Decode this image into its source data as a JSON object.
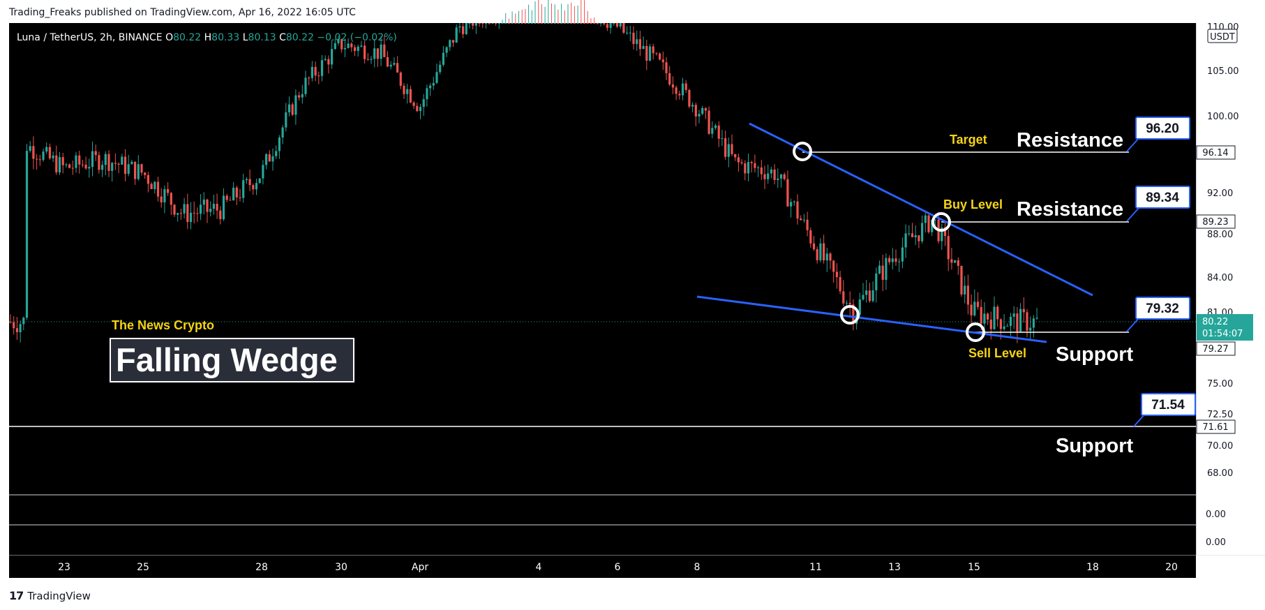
{
  "header": {
    "published": "Trading_Freaks published on TradingView.com, Apr 16, 2022 16:05 UTC"
  },
  "footer": {
    "brand_logo": "17",
    "brand_name": "TradingView"
  },
  "legend": {
    "symbol": "Luna / TetherUS, 2h, BINANCE",
    "o_label": "O",
    "o_value": "80.22",
    "h_label": "H",
    "h_value": "80.33",
    "l_label": "L",
    "l_value": "80.13",
    "c_label": "C",
    "c_value": "80.22",
    "change": "−0.02 (−0.02%)"
  },
  "annotations": {
    "watermark": "The News Crypto",
    "pattern_title": "Falling Wedge",
    "target": "Target",
    "buy_level": "Buy Level",
    "sell_level": "Sell Level",
    "resistance": "Resistance",
    "support": "Support"
  },
  "colors": {
    "up": "#26a69a",
    "down": "#ef5350",
    "trendline": "#2962ff",
    "label_gold": "#f5d415",
    "last_price_bg": "#26a69a"
  },
  "chart_data": {
    "type": "candlestick",
    "title": "Luna / TetherUS, 2h, BINANCE",
    "ylabel": "USDT",
    "y_ticks": [
      "110.00",
      "105.00",
      "100.00",
      "92.00",
      "88.00",
      "84.00",
      "81.00",
      "75.00",
      "72.50",
      "70.00",
      "68.00"
    ],
    "x_ticks": [
      "23",
      "25",
      "28",
      "30",
      "Apr",
      "4",
      "6",
      "8",
      "11",
      "13",
      "15",
      "18",
      "20"
    ],
    "price_lines": [
      {
        "name": "Resistance",
        "callout": "96.20",
        "axis_label": "96.14",
        "note": "Target"
      },
      {
        "name": "Resistance",
        "callout": "89.34",
        "axis_label": "89.23",
        "note": "Buy Level"
      },
      {
        "name": "Support",
        "callout": "79.32",
        "axis_label": "79.27",
        "note": "Sell Level"
      },
      {
        "name": "Support",
        "callout": "71.54",
        "axis_label": "71.61",
        "note": ""
      }
    ],
    "last_price": {
      "value": "80.22",
      "countdown": "01:54:07"
    },
    "indicator_panes": [
      {
        "value": "0.00"
      },
      {
        "value": "0.00"
      }
    ],
    "price_path": [
      [
        "2022-03-22",
        97
      ],
      [
        "2022-03-23",
        94.5
      ],
      [
        "2022-03-24",
        95.5
      ],
      [
        "2022-03-25",
        94
      ],
      [
        "2022-03-26",
        90
      ],
      [
        "2022-03-27",
        90.5
      ],
      [
        "2022-03-28",
        94
      ],
      [
        "2022-03-29",
        103
      ],
      [
        "2022-03-30",
        108
      ],
      [
        "2022-03-31",
        107
      ],
      [
        "2022-04-01",
        101
      ],
      [
        "2022-04-02",
        110
      ],
      [
        "2022-04-03",
        112
      ],
      [
        "2022-04-04",
        114
      ],
      [
        "2022-04-05",
        113
      ],
      [
        "2022-04-06",
        110
      ],
      [
        "2022-04-07",
        106
      ],
      [
        "2022-04-08",
        101
      ],
      [
        "2022-04-09",
        95
      ],
      [
        "2022-04-10",
        94
      ],
      [
        "2022-04-11",
        87
      ],
      [
        "2022-04-12",
        81
      ],
      [
        "2022-04-13",
        86
      ],
      [
        "2022-04-14",
        89.5
      ],
      [
        "2022-04-15",
        81
      ],
      [
        "2022-04-16",
        80.2
      ]
    ]
  }
}
